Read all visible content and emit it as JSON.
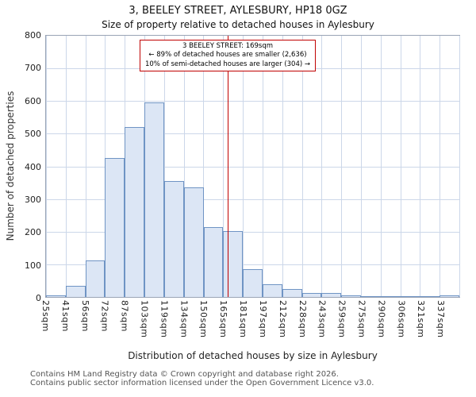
{
  "title": "3, BEELEY STREET, AYLESBURY, HP18 0GZ",
  "subtitle": "Size of property relative to detached houses in Aylesbury",
  "chart_data": {
    "type": "bar",
    "title": "3, BEELEY STREET, AYLESBURY, HP18 0GZ",
    "subtitle": "Size of property relative to detached houses in Aylesbury",
    "xlabel": "Distribution of detached houses by size in Aylesbury",
    "ylabel": "Number of detached properties",
    "ylim": [
      0,
      800
    ],
    "ytick_step": 100,
    "grid": true,
    "legend": "none",
    "categories": [
      "25sqm",
      "41sqm",
      "56sqm",
      "72sqm",
      "87sqm",
      "103sqm",
      "119sqm",
      "134sqm",
      "150sqm",
      "165sqm",
      "181sqm",
      "197sqm",
      "212sqm",
      "228sqm",
      "243sqm",
      "259sqm",
      "275sqm",
      "290sqm",
      "306sqm",
      "321sqm",
      "337sqm"
    ],
    "values": [
      5,
      35,
      113,
      425,
      520,
      595,
      355,
      336,
      213,
      203,
      85,
      40,
      25,
      12,
      12,
      5,
      2,
      2,
      2,
      2,
      5
    ],
    "bar_fill": "#dce6f5",
    "bar_stroke": "#6f94c4",
    "gridline_color": "#ccd7e9",
    "marker": {
      "value_sqm": 169,
      "line_color": "#c00000",
      "annotation": [
        "3 BEELEY STREET: 169sqm",
        "← 89% of detached houses are smaller (2,636)",
        "10% of semi-detached houses are larger (304) →"
      ]
    }
  },
  "footer": {
    "line1": "Contains HM Land Registry data © Crown copyright and database right 2026.",
    "line2": "Contains public sector information licensed under the Open Government Licence v3.0."
  }
}
